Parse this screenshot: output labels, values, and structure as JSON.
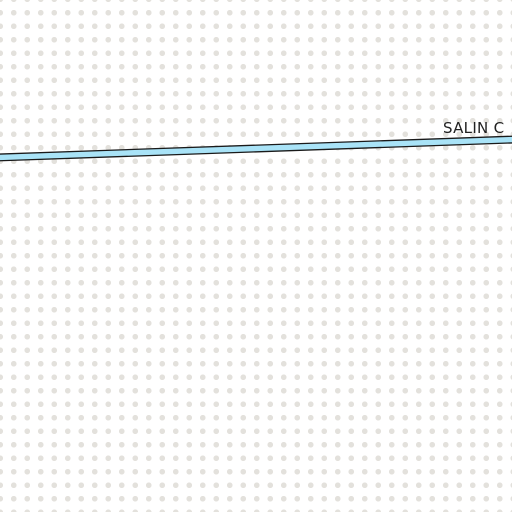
{
  "map": {
    "road": {
      "label": "SALIN C",
      "fill_color": "#a9e3f7",
      "casing_color": "#1a1a1a"
    },
    "background": {
      "base_color": "#ffffff",
      "dot_color": "#e3e1dc"
    }
  }
}
